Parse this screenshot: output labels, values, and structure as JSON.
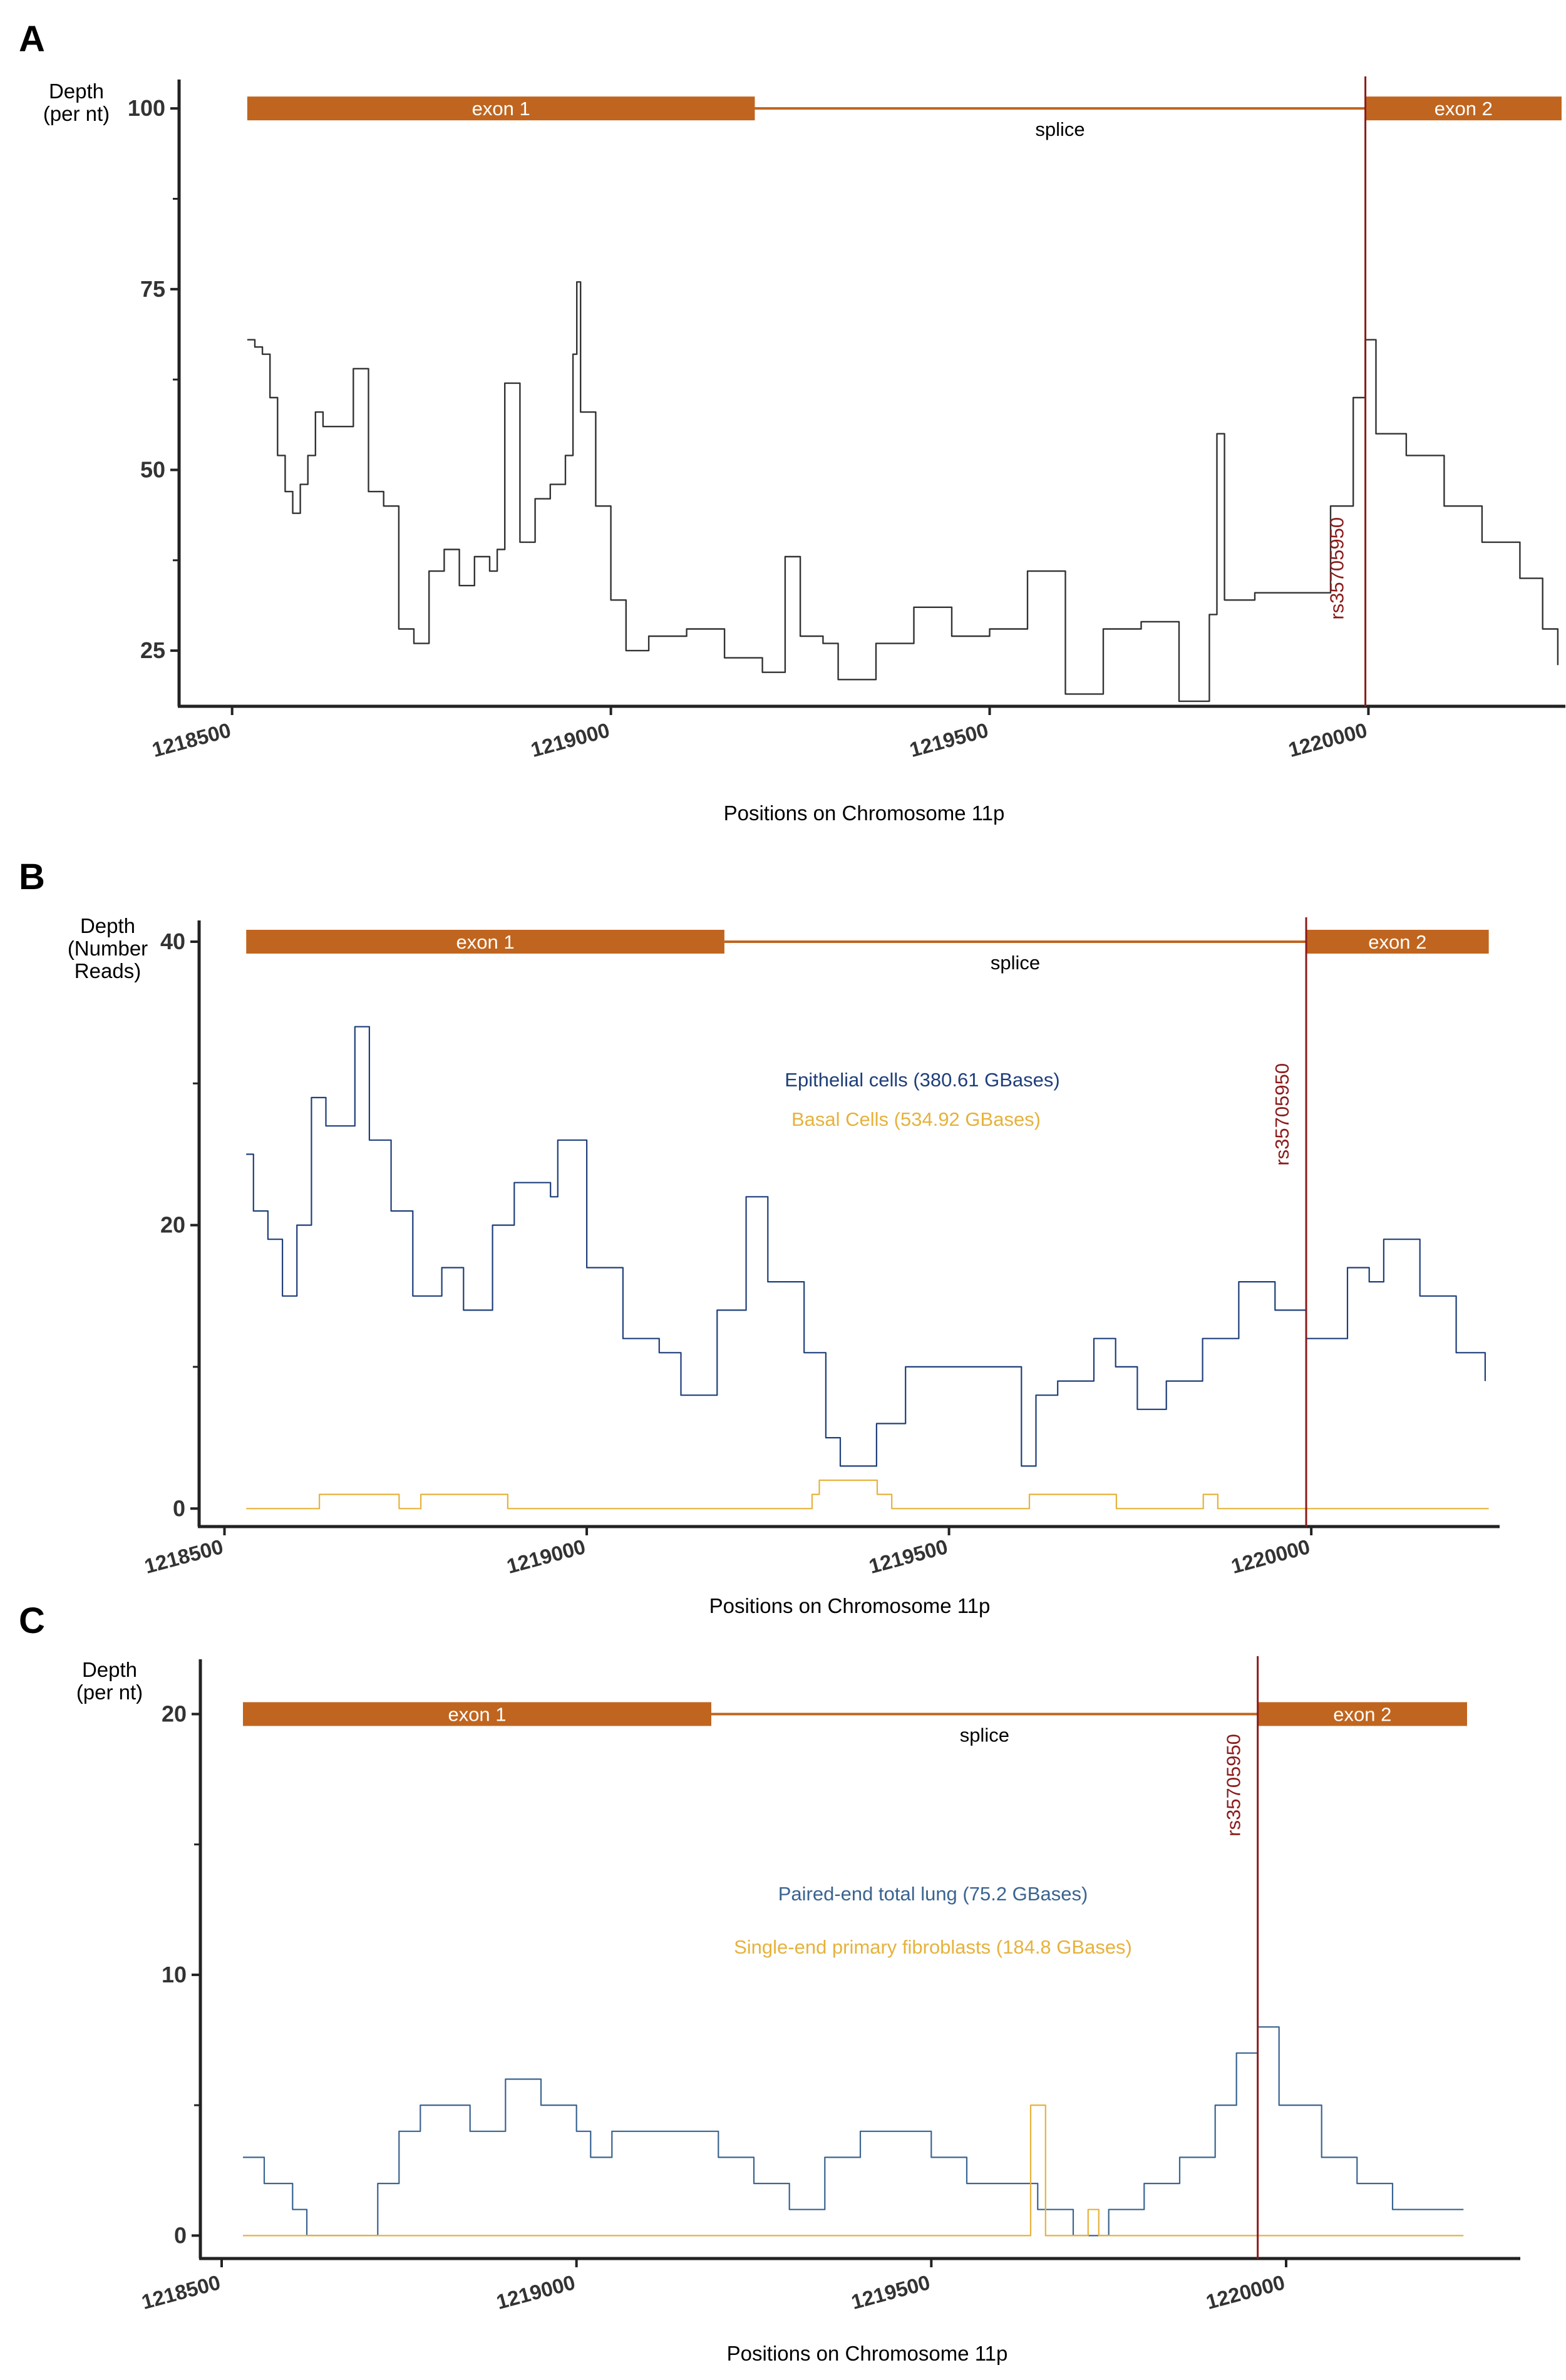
{
  "colors": {
    "exon": "#c0651f",
    "snp": "#8b1a1a",
    "depth_a": "#333333",
    "series_blue": "#1f3f7a",
    "series_blue_c": "#3a6490",
    "series_gold": "#e6b23c"
  },
  "chart_data": [
    {
      "panel": "A",
      "type": "line",
      "ylabel": [
        "Depth",
        "(per nt)"
      ],
      "xlabel": "Positions on Chromosome 11p",
      "xlim": [
        1218430,
        1220260
      ],
      "ylim": [
        17.3,
        104
      ],
      "x_ticks": [
        1218500,
        1219000,
        1219500,
        1220000
      ],
      "x_tick_labels": [
        "1218500",
        "1219000",
        "1219500",
        "1220000"
      ],
      "y_ticks": [
        25,
        50,
        75,
        100
      ],
      "y_tick_labels": [
        "25",
        "50",
        "75",
        "100"
      ],
      "gene_track": {
        "y": 100,
        "exon1": {
          "start": 1218520,
          "end": 1219190,
          "label": "exon 1"
        },
        "exon2": {
          "start": 1219996,
          "end": 1220255,
          "label": "exon 2"
        },
        "splice_label": "splice"
      },
      "snp": {
        "position": 1219996,
        "label": "rs35705950"
      },
      "series": [
        {
          "name": "Depth",
          "x": [
            1218520,
            1218530,
            1218540,
            1218550,
            1218560,
            1218570,
            1218580,
            1218590,
            1218600,
            1218610,
            1218620,
            1218640,
            1218660,
            1218680,
            1218700,
            1218720,
            1218740,
            1218760,
            1218780,
            1218800,
            1218820,
            1218840,
            1218850,
            1218860,
            1218880,
            1218900,
            1218920,
            1218940,
            1218950,
            1218955,
            1218960,
            1218980,
            1219000,
            1219020,
            1219050,
            1219100,
            1219150,
            1219200,
            1219230,
            1219250,
            1219280,
            1219300,
            1219350,
            1219400,
            1219450,
            1219500,
            1219550,
            1219600,
            1219650,
            1219700,
            1219750,
            1219790,
            1219800,
            1219810,
            1219850,
            1219900,
            1219950,
            1219980,
            1219996,
            1220010,
            1220050,
            1220100,
            1220150,
            1220200,
            1220230,
            1220250
          ],
          "y": [
            68,
            67,
            66,
            60,
            52,
            47,
            44,
            48,
            52,
            58,
            56,
            56,
            64,
            47,
            45,
            28,
            26,
            36,
            39,
            34,
            38,
            36,
            39,
            62,
            40,
            46,
            48,
            52,
            66,
            76,
            58,
            45,
            32,
            25,
            27,
            28,
            24,
            22,
            38,
            27,
            26,
            21,
            26,
            31,
            27,
            28,
            36,
            19,
            28,
            29,
            18,
            30,
            55,
            32,
            33,
            33,
            45,
            60,
            68,
            55,
            52,
            45,
            40,
            35,
            28,
            23
          ]
        }
      ]
    },
    {
      "panel": "B",
      "type": "line",
      "ylabel": [
        "Depth",
        "(Number",
        "Reads)"
      ],
      "xlabel": "Positions on Chromosome 11p",
      "xlim": [
        1218465,
        1220260
      ],
      "ylim": [
        -1.27,
        41.5
      ],
      "x_ticks": [
        1218500,
        1219000,
        1219500,
        1220000
      ],
      "x_tick_labels": [
        "1218500",
        "1219000",
        "1219500",
        "1220000"
      ],
      "y_ticks": [
        0,
        20,
        40
      ],
      "y_tick_labels": [
        "0",
        "20",
        "40"
      ],
      "gene_track": {
        "y": 40,
        "exon1": {
          "start": 1218530,
          "end": 1219190,
          "label": "exon 1"
        },
        "exon2": {
          "start": 1219993,
          "end": 1220245,
          "label": "exon 2"
        },
        "splice_label": "splice"
      },
      "snp": {
        "position": 1219993,
        "label": "rs35705950"
      },
      "legend": [
        "Epithelial cells (380.61 GBases)",
        "Basal Cells (534.92 GBases)"
      ],
      "series": [
        {
          "name": "Epithelial cells (380.61 GBases)",
          "x": [
            1218530,
            1218540,
            1218560,
            1218580,
            1218600,
            1218620,
            1218640,
            1218660,
            1218680,
            1218700,
            1218730,
            1218760,
            1218800,
            1218830,
            1218870,
            1218900,
            1218950,
            1218960,
            1219000,
            1219050,
            1219100,
            1219130,
            1219180,
            1219220,
            1219250,
            1219300,
            1219330,
            1219350,
            1219400,
            1219440,
            1219500,
            1219550,
            1219600,
            1219620,
            1219650,
            1219700,
            1219730,
            1219760,
            1219800,
            1219850,
            1219900,
            1219950,
            1219993,
            1220050,
            1220080,
            1220100,
            1220150,
            1220200,
            1220240
          ],
          "y": [
            25,
            21,
            19,
            15,
            20,
            29,
            27,
            27,
            34,
            26,
            21,
            15,
            17,
            14,
            20,
            23,
            22,
            26,
            17,
            12,
            11,
            8,
            14,
            22,
            16,
            11,
            5,
            3,
            6,
            10,
            10,
            10,
            3,
            8,
            9,
            12,
            10,
            7,
            9,
            12,
            16,
            14,
            12,
            17,
            16,
            19,
            15,
            11,
            9
          ]
        },
        {
          "name": "Basal Cells (534.92 GBases)",
          "x": [
            1218530,
            1218630,
            1218631,
            1218740,
            1218741,
            1218770,
            1218771,
            1218890,
            1218891,
            1219310,
            1219311,
            1219320,
            1219321,
            1219400,
            1219401,
            1219420,
            1219421,
            1219610,
            1219611,
            1219730,
            1219731,
            1219850,
            1219851,
            1219870,
            1219871,
            1220245
          ],
          "y": [
            0,
            0,
            1,
            1,
            0,
            0,
            1,
            1,
            0,
            0,
            1,
            1,
            2,
            2,
            1,
            1,
            0,
            0,
            1,
            1,
            0,
            0,
            1,
            1,
            0,
            0
          ]
        }
      ]
    },
    {
      "panel": "C",
      "type": "line",
      "ylabel": [
        "Depth",
        "(per nt)"
      ],
      "xlabel": "Positions on Chromosome 11p",
      "xlim": [
        1218470,
        1220330
      ],
      "ylim": [
        -0.88,
        22.1
      ],
      "x_ticks": [
        1218500,
        1219000,
        1219500,
        1220000
      ],
      "x_tick_labels": [
        "1218500",
        "1219000",
        "1219500",
        "1220000"
      ],
      "y_ticks": [
        0,
        10,
        20
      ],
      "y_tick_labels": [
        "0",
        "10",
        "20"
      ],
      "gene_track": {
        "y": 20,
        "exon1": {
          "start": 1218530,
          "end": 1219190,
          "label": "exon 1"
        },
        "exon2": {
          "start": 1219960,
          "end": 1220255,
          "label": "exon 2"
        },
        "splice_label": "splice"
      },
      "snp": {
        "position": 1219960,
        "label": "rs35705950"
      },
      "legend": [
        "Paired-end total lung (75.2 GBases)",
        "Single-end primary fibroblasts (184.8 GBases)"
      ],
      "series": [
        {
          "name": "Paired-end total lung (75.2 GBases)",
          "x": [
            1218530,
            1218550,
            1218560,
            1218580,
            1218600,
            1218620,
            1218700,
            1218720,
            1218750,
            1218780,
            1218800,
            1218850,
            1218900,
            1218950,
            1219000,
            1219020,
            1219050,
            1219100,
            1219150,
            1219200,
            1219250,
            1219300,
            1219350,
            1219400,
            1219450,
            1219500,
            1219550,
            1219600,
            1219650,
            1219700,
            1219750,
            1219800,
            1219850,
            1219900,
            1219930,
            1219960,
            1219990,
            1220050,
            1220100,
            1220150,
            1220200,
            1220250
          ],
          "y": [
            3,
            3,
            2,
            2,
            1,
            0,
            0,
            2,
            4,
            5,
            5,
            4,
            6,
            5,
            4,
            3,
            4,
            4,
            4,
            3,
            2,
            1,
            3,
            4,
            4,
            3,
            2,
            2,
            1,
            0,
            1,
            2,
            3,
            5,
            7,
            8,
            5,
            3,
            2,
            1,
            1,
            1
          ]
        },
        {
          "name": "Single-end primary fibroblasts (184.8 GBases)",
          "x": [
            1218530,
            1219639,
            1219640,
            1219660,
            1219661,
            1219720,
            1219721,
            1219735,
            1219736,
            1220250
          ],
          "y": [
            0,
            0,
            5,
            5,
            0,
            0,
            1,
            1,
            0,
            0
          ]
        }
      ]
    }
  ]
}
